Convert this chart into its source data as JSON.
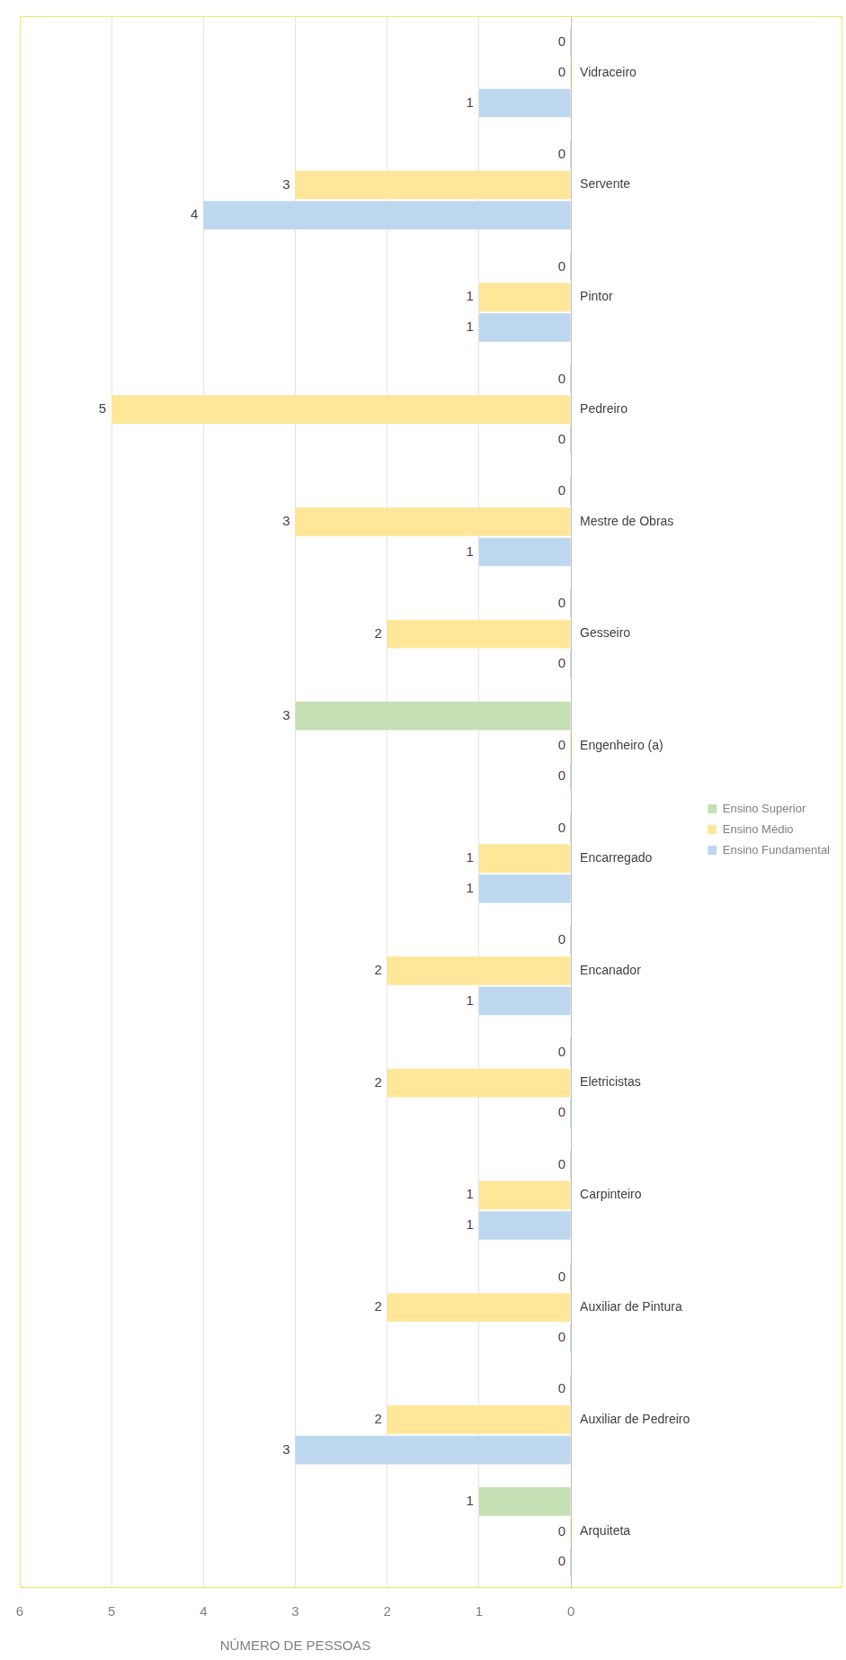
{
  "chart_data": {
    "type": "bar",
    "orientation": "horizontal",
    "xlabel": "NÚMERO DE PESSOAS",
    "categories": [
      "Vidraceiro",
      "Servente",
      "Pintor",
      "Pedreiro",
      "Mestre de Obras",
      "Gesseiro",
      "Engenheiro (a)",
      "Encarregado",
      "Encanador",
      "Eletricistas",
      "Carpinteiro",
      "Auxiliar de Pintura",
      "Auxiliar de Pedreiro",
      "Arquiteta"
    ],
    "series": [
      {
        "name": "Ensino Fundamental",
        "color": "#bdd7ee",
        "values": [
          1,
          4,
          1,
          0,
          1,
          0,
          0,
          1,
          1,
          0,
          1,
          0,
          3,
          0
        ]
      },
      {
        "name": "Ensino Médio",
        "color": "#ffe699",
        "values": [
          0,
          3,
          1,
          5,
          3,
          2,
          0,
          1,
          2,
          2,
          1,
          2,
          2,
          0
        ]
      },
      {
        "name": "Ensino Superior",
        "color": "#c5e0b4",
        "values": [
          0,
          0,
          0,
          0,
          0,
          0,
          3,
          0,
          0,
          0,
          0,
          0,
          0,
          1
        ]
      }
    ],
    "xlim": [
      6,
      0
    ],
    "xticks": [
      0,
      1,
      2,
      3,
      4,
      5,
      6
    ],
    "grid": "x",
    "legend": "right",
    "data_labels": true
  }
}
